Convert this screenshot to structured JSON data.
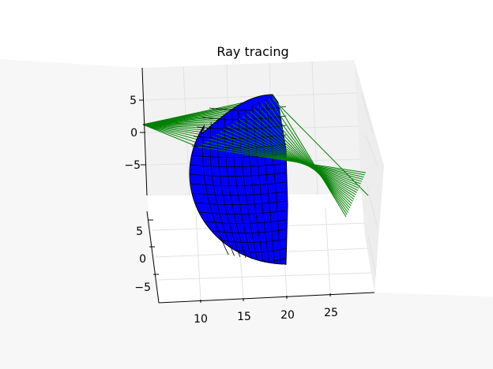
{
  "chart_data": {
    "type": "3d-surface",
    "title": "Ray tracing",
    "axes": {
      "x": {
        "ticks": [
          "10",
          "15",
          "20",
          "25"
        ]
      },
      "y": {
        "ticks": [
          "5",
          "0",
          "−5"
        ]
      },
      "z": {
        "ticks": [
          "5",
          "0",
          "−5"
        ]
      }
    },
    "series": [
      {
        "kind": "surface",
        "shape": "hemisphere",
        "color": "#0000ff",
        "edgecolor": "#000000"
      },
      {
        "kind": "rays",
        "color": "#008000",
        "count": 21
      }
    ],
    "grid": true
  }
}
